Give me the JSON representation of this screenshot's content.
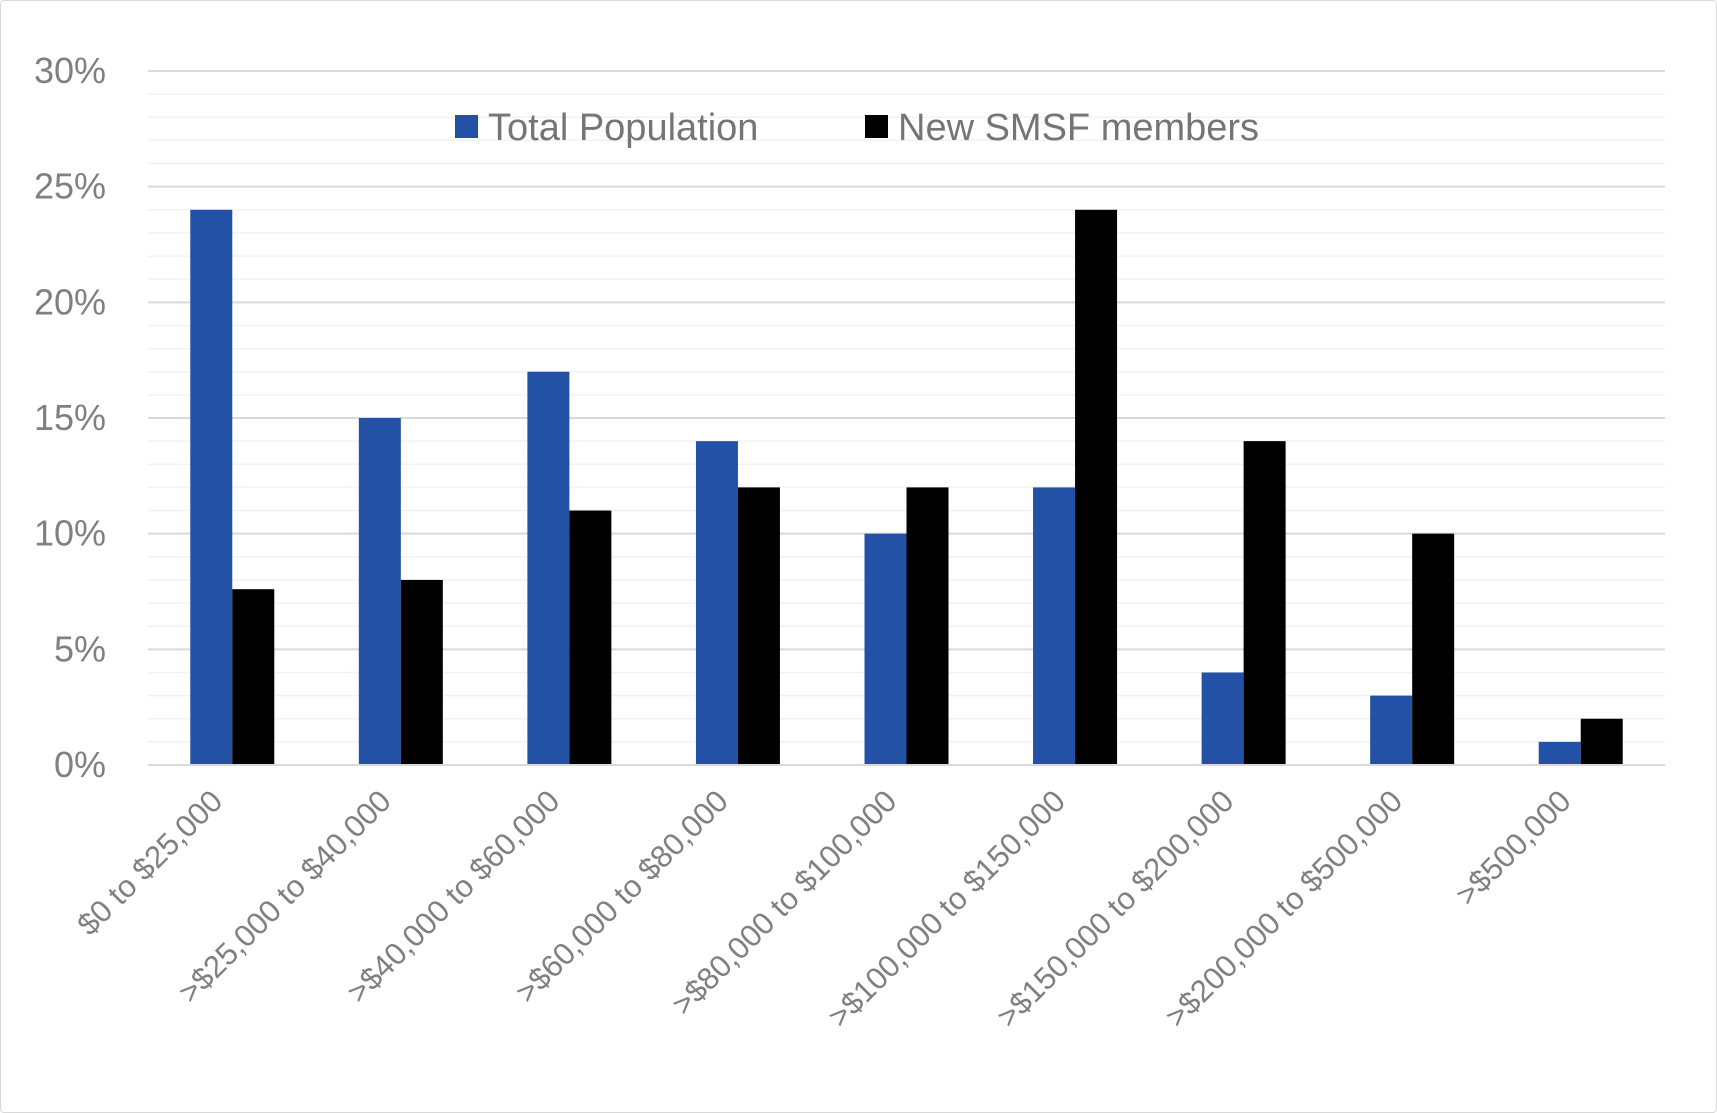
{
  "chart_data": {
    "type": "bar",
    "title": "",
    "xlabel": "",
    "ylabel": "",
    "categories": [
      "$0 to $25,000",
      ">$25,000 to $40,000",
      ">$40,000 to $60,000",
      ">$60,000 to $80,000",
      ">$80,000 to $100,000",
      ">$100,000 to $150,000",
      ">$150,000 to $200,000",
      ">$200,000 to $500,000",
      ">$500,000"
    ],
    "series": [
      {
        "name": "Total Population",
        "color": "#2251a5",
        "values": [
          24,
          15,
          17,
          14,
          10,
          12,
          4,
          3,
          1
        ]
      },
      {
        "name": "New SMSF members",
        "color": "#000000",
        "values": [
          7.6,
          8,
          11,
          12,
          12,
          24,
          14,
          10,
          2
        ]
      }
    ],
    "ylim": [
      0,
      30
    ],
    "yticks": [
      0,
      5,
      10,
      15,
      20,
      25,
      30
    ],
    "ytick_labels": [
      "0%",
      "5%",
      "10%",
      "15%",
      "20%",
      "25%",
      "30%"
    ],
    "minor_grid_step": 1,
    "grid": true,
    "legend_position": "top-center"
  }
}
